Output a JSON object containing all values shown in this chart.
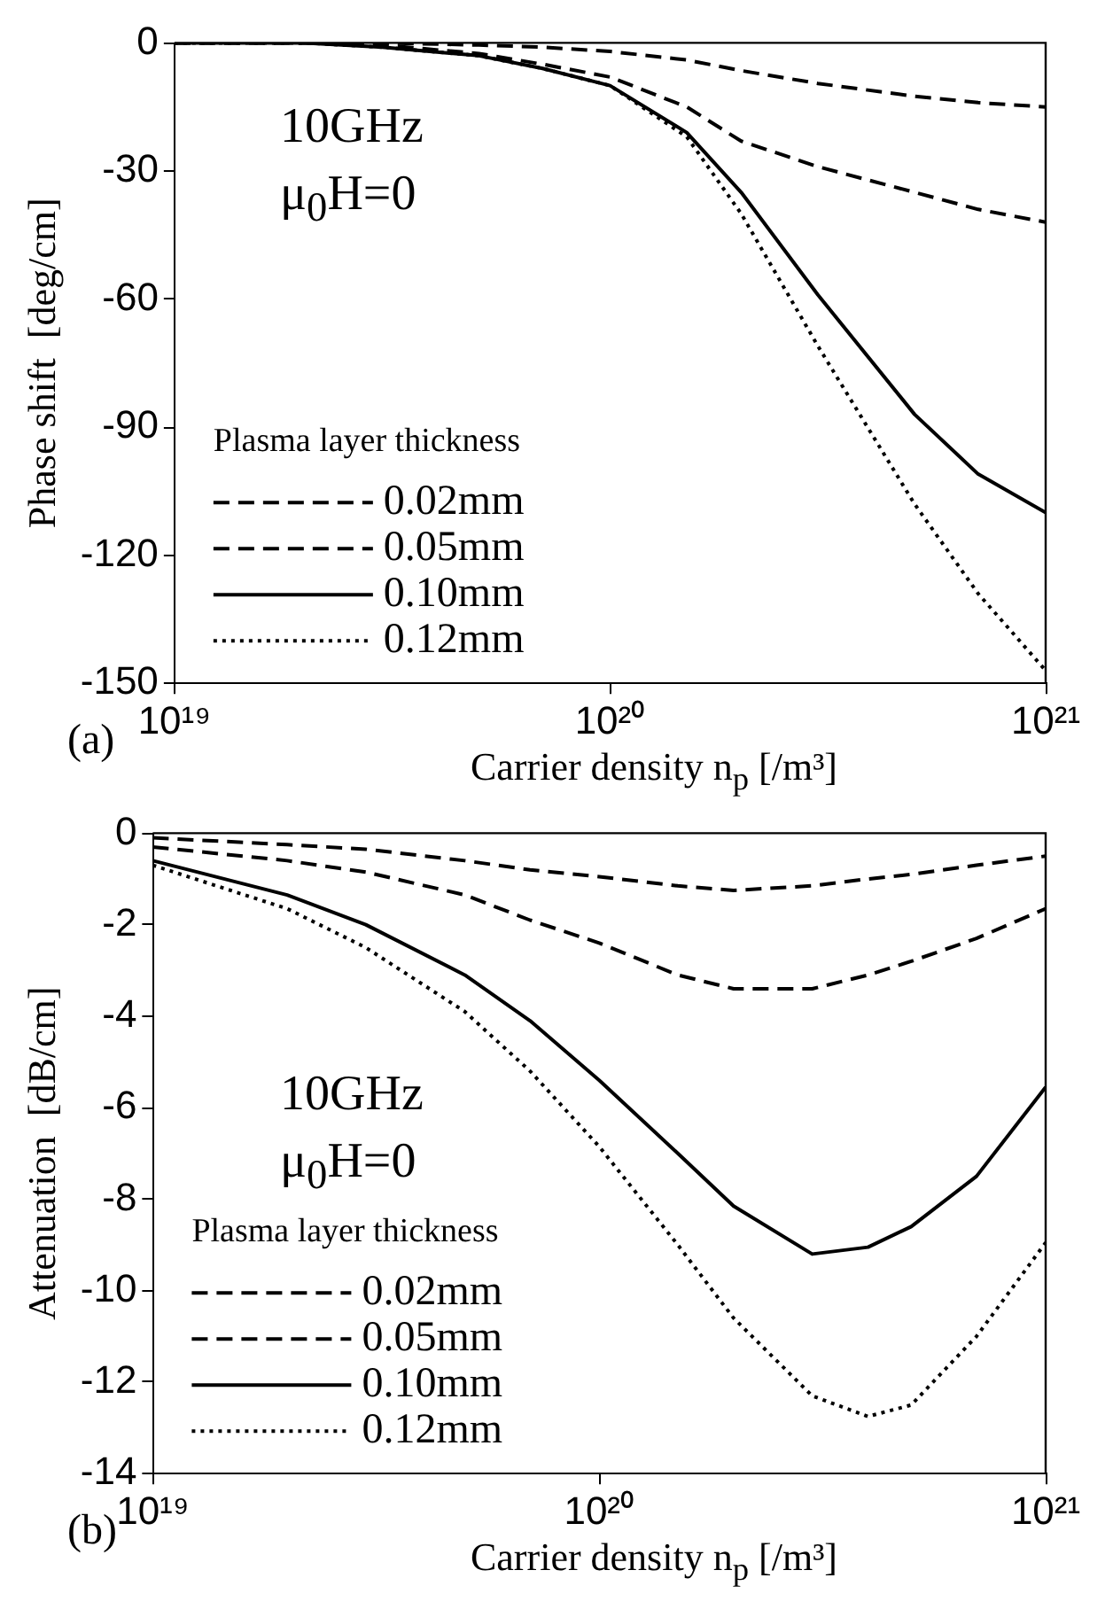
{
  "chart_data": [
    {
      "type": "line",
      "ylabel": "Phase shift  [deg/cm]",
      "xlabel": "Carrier density  n$_{p}$  [/m³]",
      "legend_title": "Plasma layer thickness",
      "legend": "bottom left",
      "log": "x",
      "grid": false,
      "marker": "none",
      "xlim": [
        1e+19,
        1e+21
      ],
      "xticks": [
        {
          "value": 1e+19,
          "label": "10¹⁹"
        },
        {
          "value": 1e+20,
          "label": "10²⁰"
        },
        {
          "value": 1e+21,
          "label": "10²¹"
        }
      ],
      "ylim": [
        -150,
        0
      ],
      "yticks": [
        0,
        -30,
        -60,
        -90,
        -120,
        -150
      ],
      "annotations": [
        "10GHz",
        "μ$_{0}$H=0",
        "(a)"
      ],
      "x": [
        1e+19,
        2e+19,
        3e+19,
        5e+19,
        7e+19,
        1e+20,
        1.5e+20,
        2e+20,
        3e+20,
        5e+20,
        7e+20,
        1e+21
      ],
      "series": [
        {
          "name": "0.02mm",
          "color": "#000000",
          "line_style": "dashed",
          "values": [
            0,
            0,
            0,
            -0.5,
            -1,
            -2,
            -4,
            -6.5,
            -9.5,
            -12.5,
            -14,
            -15
          ]
        },
        {
          "name": "0.05mm",
          "color": "#000000",
          "line_style": "dashed",
          "values": [
            0,
            0,
            -0.5,
            -2.5,
            -5,
            -8,
            -15,
            -23,
            -29,
            -35,
            -39,
            -42
          ]
        },
        {
          "name": "0.10mm",
          "color": "#000000",
          "line_style": "solid",
          "values": [
            0,
            0,
            -1,
            -3,
            -6,
            -10,
            -21,
            -35,
            -59,
            -87,
            -101,
            -110
          ]
        },
        {
          "name": "0.12mm",
          "color": "#000000",
          "line_style": "dotted",
          "values": [
            0,
            0,
            -1,
            -3,
            -6,
            -10,
            -22,
            -40,
            -71,
            -108,
            -129,
            -147
          ]
        }
      ]
    },
    {
      "type": "line",
      "ylabel": "Attenuation  [dB/cm]",
      "xlabel": "Carrier density  n$_{p}$  [/m³]",
      "legend_title": "Plasma layer thickness",
      "legend": "bottom left",
      "log": "x",
      "grid": false,
      "marker": "none",
      "xlim": [
        1e+19,
        1e+21
      ],
      "xticks": [
        {
          "value": 1e+19,
          "label": "10¹⁹"
        },
        {
          "value": 1e+20,
          "label": "10²⁰"
        },
        {
          "value": 1e+21,
          "label": "10²¹"
        }
      ],
      "ylim": [
        -14,
        0
      ],
      "yticks": [
        0,
        -2,
        -4,
        -6,
        -8,
        -10,
        -12,
        -14
      ],
      "annotations": [
        "10GHz",
        "μ$_{0}$H=0",
        "(b)"
      ],
      "x": [
        1e+19,
        2e+19,
        3e+19,
        5e+19,
        7e+19,
        1e+20,
        1.5e+20,
        2e+20,
        3e+20,
        4e+20,
        5e+20,
        7e+20,
        1e+21
      ],
      "series": [
        {
          "name": "0.02mm",
          "color": "#000000",
          "line_style": "dashed",
          "values": [
            -0.1,
            -0.25,
            -0.35,
            -0.6,
            -0.8,
            -0.95,
            -1.15,
            -1.25,
            -1.15,
            -1.0,
            -0.9,
            -0.7,
            -0.5
          ]
        },
        {
          "name": "0.05mm",
          "color": "#000000",
          "line_style": "dashed",
          "values": [
            -0.3,
            -0.6,
            -0.85,
            -1.35,
            -1.9,
            -2.4,
            -3.1,
            -3.4,
            -3.4,
            -3.1,
            -2.8,
            -2.3,
            -1.65
          ]
        },
        {
          "name": "0.10mm",
          "color": "#000000",
          "line_style": "solid",
          "values": [
            -0.6,
            -1.35,
            -2.0,
            -3.1,
            -4.1,
            -5.4,
            -7.0,
            -8.15,
            -9.2,
            -9.05,
            -8.6,
            -7.5,
            -5.55
          ]
        },
        {
          "name": "0.12mm",
          "color": "#000000",
          "line_style": "dotted",
          "values": [
            -0.7,
            -1.65,
            -2.5,
            -3.9,
            -5.2,
            -6.85,
            -9.0,
            -10.6,
            -12.3,
            -12.75,
            -12.5,
            -11.0,
            -8.95
          ]
        }
      ]
    }
  ]
}
